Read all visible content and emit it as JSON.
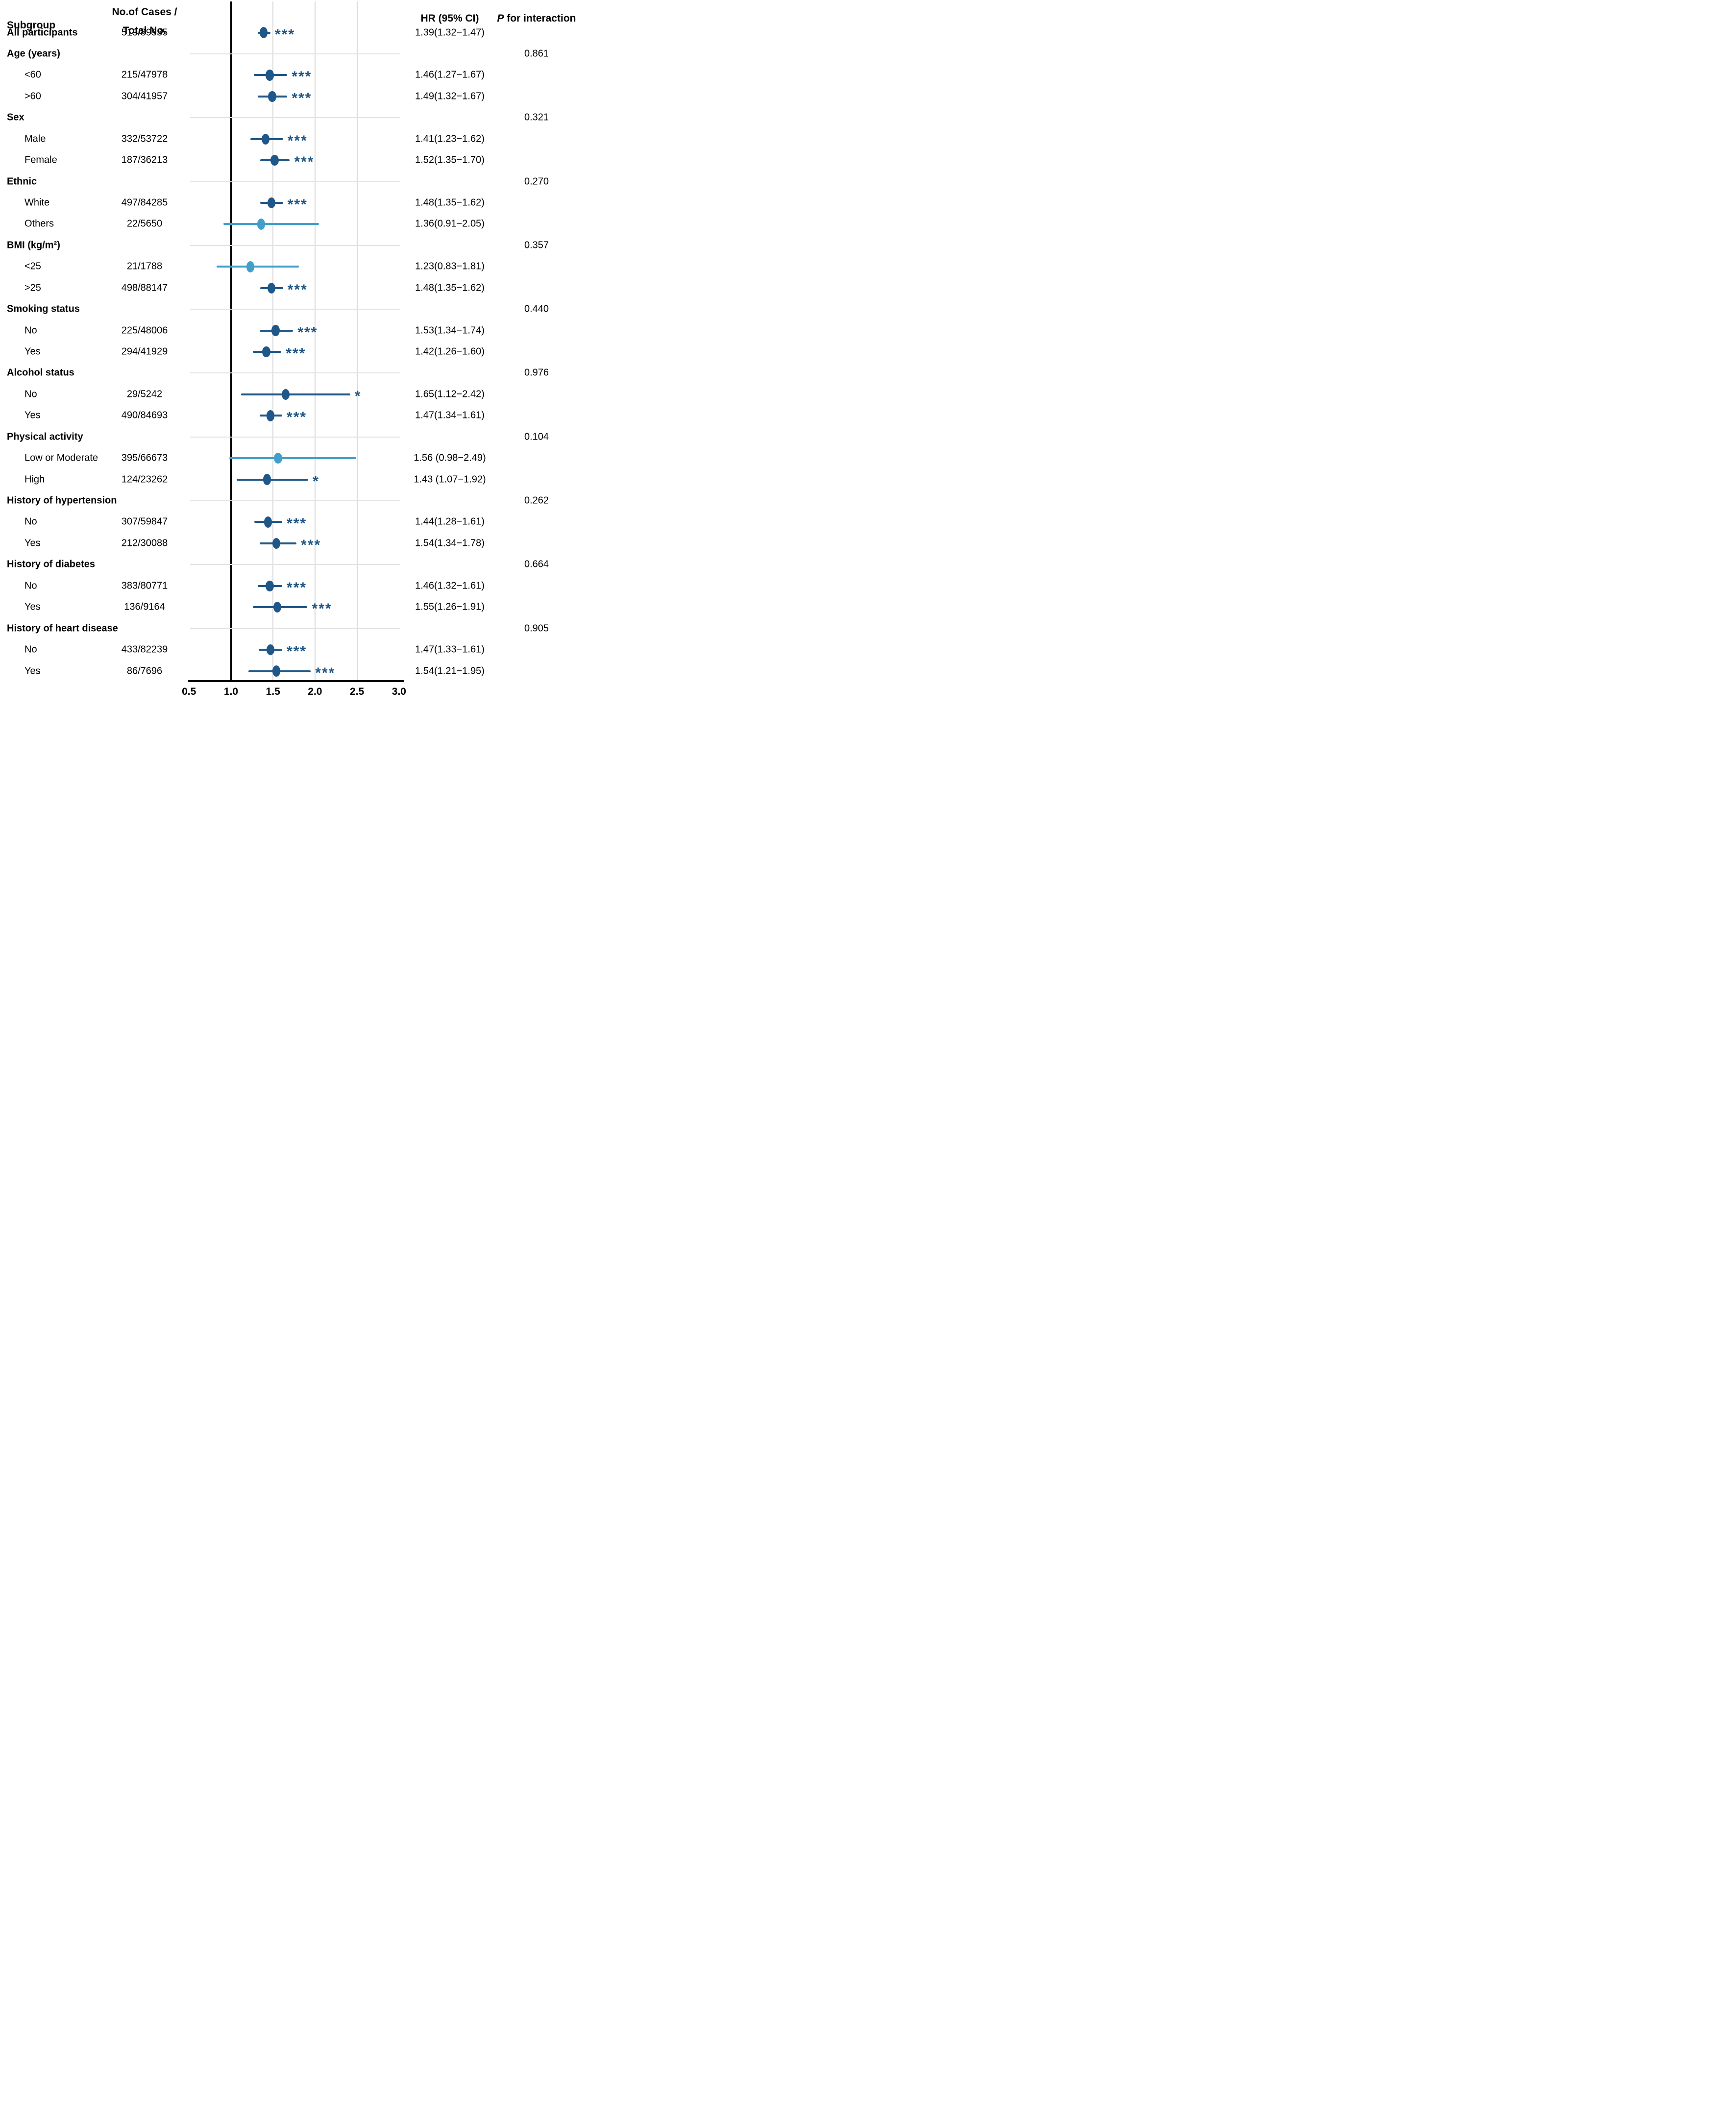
{
  "header": {
    "subgroup": "Subgroup",
    "cases_line1": "No.of Cases /",
    "cases_line2": "Total No.",
    "hr": "HR (95% CI)",
    "p_italic": "P",
    "p_rest": " for interaction"
  },
  "axis": {
    "ticks": [
      "0.5",
      "1.0",
      "1.5",
      "2.0",
      "2.5",
      "3.0"
    ],
    "min": 0.5,
    "max": 3.0,
    "ref_line": 1.0,
    "gridlines": [
      1.5,
      2.0,
      2.5
    ]
  },
  "colors": {
    "dark": "#1F5788",
    "light": "#429FC9",
    "grid": "#D9D9D9",
    "separator": "#E2E2E2",
    "axis": "#000000",
    "text": "#000000"
  },
  "chart_data": {
    "type": "forest",
    "title": "",
    "xlabel": "",
    "xlim": [
      0.5,
      3.0
    ],
    "marker": "dot with 95% CI horizontal line; stars mark significance",
    "rows": [
      {
        "kind": "data",
        "label": "All participants",
        "bold": true,
        "cases": "519/89935",
        "hr": 1.39,
        "lo": 1.32,
        "hi": 1.47,
        "hr_text": "1.39(1.32−1.47)",
        "sig": "***",
        "tone": "dark",
        "p": ""
      },
      {
        "kind": "section",
        "label": "Age (years)",
        "p": "0.861"
      },
      {
        "kind": "data",
        "label": "<60",
        "bold": false,
        "cases": "215/47978",
        "hr": 1.46,
        "lo": 1.27,
        "hi": 1.67,
        "hr_text": "1.46(1.27−1.67)",
        "sig": "***",
        "tone": "dark",
        "p": ""
      },
      {
        "kind": "data",
        "label": ">60",
        "bold": false,
        "cases": "304/41957",
        "hr": 1.49,
        "lo": 1.32,
        "hi": 1.67,
        "hr_text": "1.49(1.32−1.67)",
        "sig": "***",
        "tone": "dark",
        "p": ""
      },
      {
        "kind": "section",
        "label": "Sex",
        "p": "0.321"
      },
      {
        "kind": "data",
        "label": "Male",
        "bold": false,
        "cases": "332/53722",
        "hr": 1.41,
        "lo": 1.23,
        "hi": 1.62,
        "hr_text": "1.41(1.23−1.62)",
        "sig": "***",
        "tone": "dark",
        "p": ""
      },
      {
        "kind": "data",
        "label": "Female",
        "bold": false,
        "cases": "187/36213",
        "hr": 1.52,
        "lo": 1.35,
        "hi": 1.7,
        "hr_text": "1.52(1.35−1.70)",
        "sig": "***",
        "tone": "dark",
        "p": ""
      },
      {
        "kind": "section",
        "label": "Ethnic",
        "p": "0.270"
      },
      {
        "kind": "data",
        "label": "White",
        "bold": false,
        "cases": "497/84285",
        "hr": 1.48,
        "lo": 1.35,
        "hi": 1.62,
        "hr_text": "1.48(1.35−1.62)",
        "sig": "***",
        "tone": "dark",
        "p": ""
      },
      {
        "kind": "data",
        "label": "Others",
        "bold": false,
        "cases": "22/5650",
        "hr": 1.36,
        "lo": 0.91,
        "hi": 2.05,
        "hr_text": "1.36(0.91−2.05)",
        "sig": "",
        "tone": "light",
        "p": ""
      },
      {
        "kind": "section",
        "label": "BMI (kg/m²)",
        "p": "0.357"
      },
      {
        "kind": "data",
        "label": "<25",
        "bold": false,
        "cases": "21/1788",
        "hr": 1.23,
        "lo": 0.83,
        "hi": 1.81,
        "hr_text": "1.23(0.83−1.81)",
        "sig": "",
        "tone": "light",
        "p": ""
      },
      {
        "kind": "data",
        "label": ">25",
        "bold": false,
        "cases": "498/88147",
        "hr": 1.48,
        "lo": 1.35,
        "hi": 1.62,
        "hr_text": "1.48(1.35−1.62)",
        "sig": "***",
        "tone": "dark",
        "p": ""
      },
      {
        "kind": "section",
        "label": "Smoking status",
        "p": "0.440"
      },
      {
        "kind": "data",
        "label": "No",
        "bold": false,
        "cases": "225/48006",
        "hr": 1.53,
        "lo": 1.34,
        "hi": 1.74,
        "hr_text": "1.53(1.34−1.74)",
        "sig": "***",
        "tone": "dark",
        "p": ""
      },
      {
        "kind": "data",
        "label": "Yes",
        "bold": false,
        "cases": "294/41929",
        "hr": 1.42,
        "lo": 1.26,
        "hi": 1.6,
        "hr_text": "1.42(1.26−1.60)",
        "sig": "***",
        "tone": "dark",
        "p": ""
      },
      {
        "kind": "section",
        "label": "Alcohol status",
        "p": "0.976"
      },
      {
        "kind": "data",
        "label": "No",
        "bold": false,
        "cases": "29/5242",
        "hr": 1.65,
        "lo": 1.12,
        "hi": 2.42,
        "hr_text": "1.65(1.12−2.42)",
        "sig": "*",
        "tone": "dark",
        "p": ""
      },
      {
        "kind": "data",
        "label": "Yes",
        "bold": false,
        "cases": "490/84693",
        "hr": 1.47,
        "lo": 1.34,
        "hi": 1.61,
        "hr_text": "1.47(1.34−1.61)",
        "sig": "***",
        "tone": "dark",
        "p": ""
      },
      {
        "kind": "section",
        "label": "Physical activity",
        "p": "0.104"
      },
      {
        "kind": "data",
        "label": "Low or Moderate",
        "bold": false,
        "cases": "395/66673",
        "hr": 1.56,
        "lo": 0.98,
        "hi": 2.49,
        "hr_text": "1.56 (0.98−2.49)",
        "sig": "",
        "tone": "light",
        "p": ""
      },
      {
        "kind": "data",
        "label": "High",
        "bold": false,
        "cases": "124/23262",
        "hr": 1.43,
        "lo": 1.07,
        "hi": 1.92,
        "hr_text": "1.43 (1.07−1.92)",
        "sig": "*",
        "tone": "dark",
        "p": ""
      },
      {
        "kind": "section",
        "label": "History of hypertension",
        "p": "0.262"
      },
      {
        "kind": "data",
        "label": "No",
        "bold": false,
        "cases": "307/59847",
        "hr": 1.44,
        "lo": 1.28,
        "hi": 1.61,
        "hr_text": "1.44(1.28−1.61)",
        "sig": "***",
        "tone": "dark",
        "p": ""
      },
      {
        "kind": "data",
        "label": "Yes",
        "bold": false,
        "cases": "212/30088",
        "hr": 1.54,
        "lo": 1.34,
        "hi": 1.78,
        "hr_text": "1.54(1.34−1.78)",
        "sig": "***",
        "tone": "dark",
        "p": ""
      },
      {
        "kind": "section",
        "label": "History of diabetes",
        "p": "0.664"
      },
      {
        "kind": "data",
        "label": "No",
        "bold": false,
        "cases": "383/80771",
        "hr": 1.46,
        "lo": 1.32,
        "hi": 1.61,
        "hr_text": "1.46(1.32−1.61)",
        "sig": "***",
        "tone": "dark",
        "p": ""
      },
      {
        "kind": "data",
        "label": "Yes",
        "bold": false,
        "cases": "136/9164",
        "hr": 1.55,
        "lo": 1.26,
        "hi": 1.91,
        "hr_text": "1.55(1.26−1.91)",
        "sig": "***",
        "tone": "dark",
        "p": ""
      },
      {
        "kind": "section",
        "label": "History of heart disease",
        "p": "0.905"
      },
      {
        "kind": "data",
        "label": "No",
        "bold": false,
        "cases": "433/82239",
        "hr": 1.47,
        "lo": 1.33,
        "hi": 1.61,
        "hr_text": "1.47(1.33−1.61)",
        "sig": "***",
        "tone": "dark",
        "p": ""
      },
      {
        "kind": "data",
        "label": "Yes",
        "bold": false,
        "cases": "86/7696",
        "hr": 1.54,
        "lo": 1.21,
        "hi": 1.95,
        "hr_text": "1.54(1.21−1.95)",
        "sig": "***",
        "tone": "dark",
        "p": ""
      }
    ]
  }
}
